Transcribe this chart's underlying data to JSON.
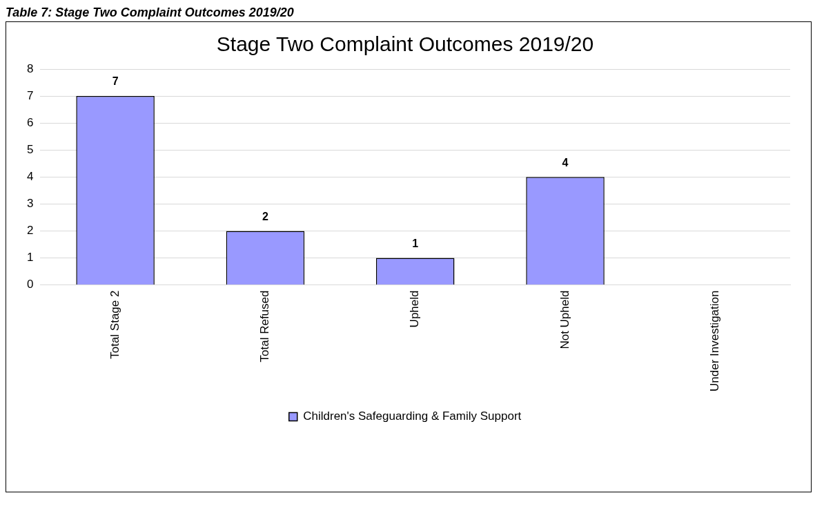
{
  "chart_data": {
    "type": "bar",
    "title": "Stage Two Complaint Outcomes 2019/20",
    "annotations": [
      "Table 7: Stage Two Complaint Outcomes 2019/20"
    ],
    "categories": [
      "Total Stage 2",
      "Total Refused",
      "Upheld",
      "Not Upheld",
      "Under Investigation"
    ],
    "series": [
      {
        "name": "Children's Safeguarding & Family Support",
        "color": "#9999ff",
        "values": [
          7,
          2,
          1,
          4,
          null
        ]
      }
    ],
    "data_labels": true,
    "ylim": [
      0,
      8
    ],
    "yticks": [
      0,
      1,
      2,
      3,
      4,
      5,
      6,
      7,
      8
    ],
    "grid": "y",
    "legend": "bottom"
  }
}
